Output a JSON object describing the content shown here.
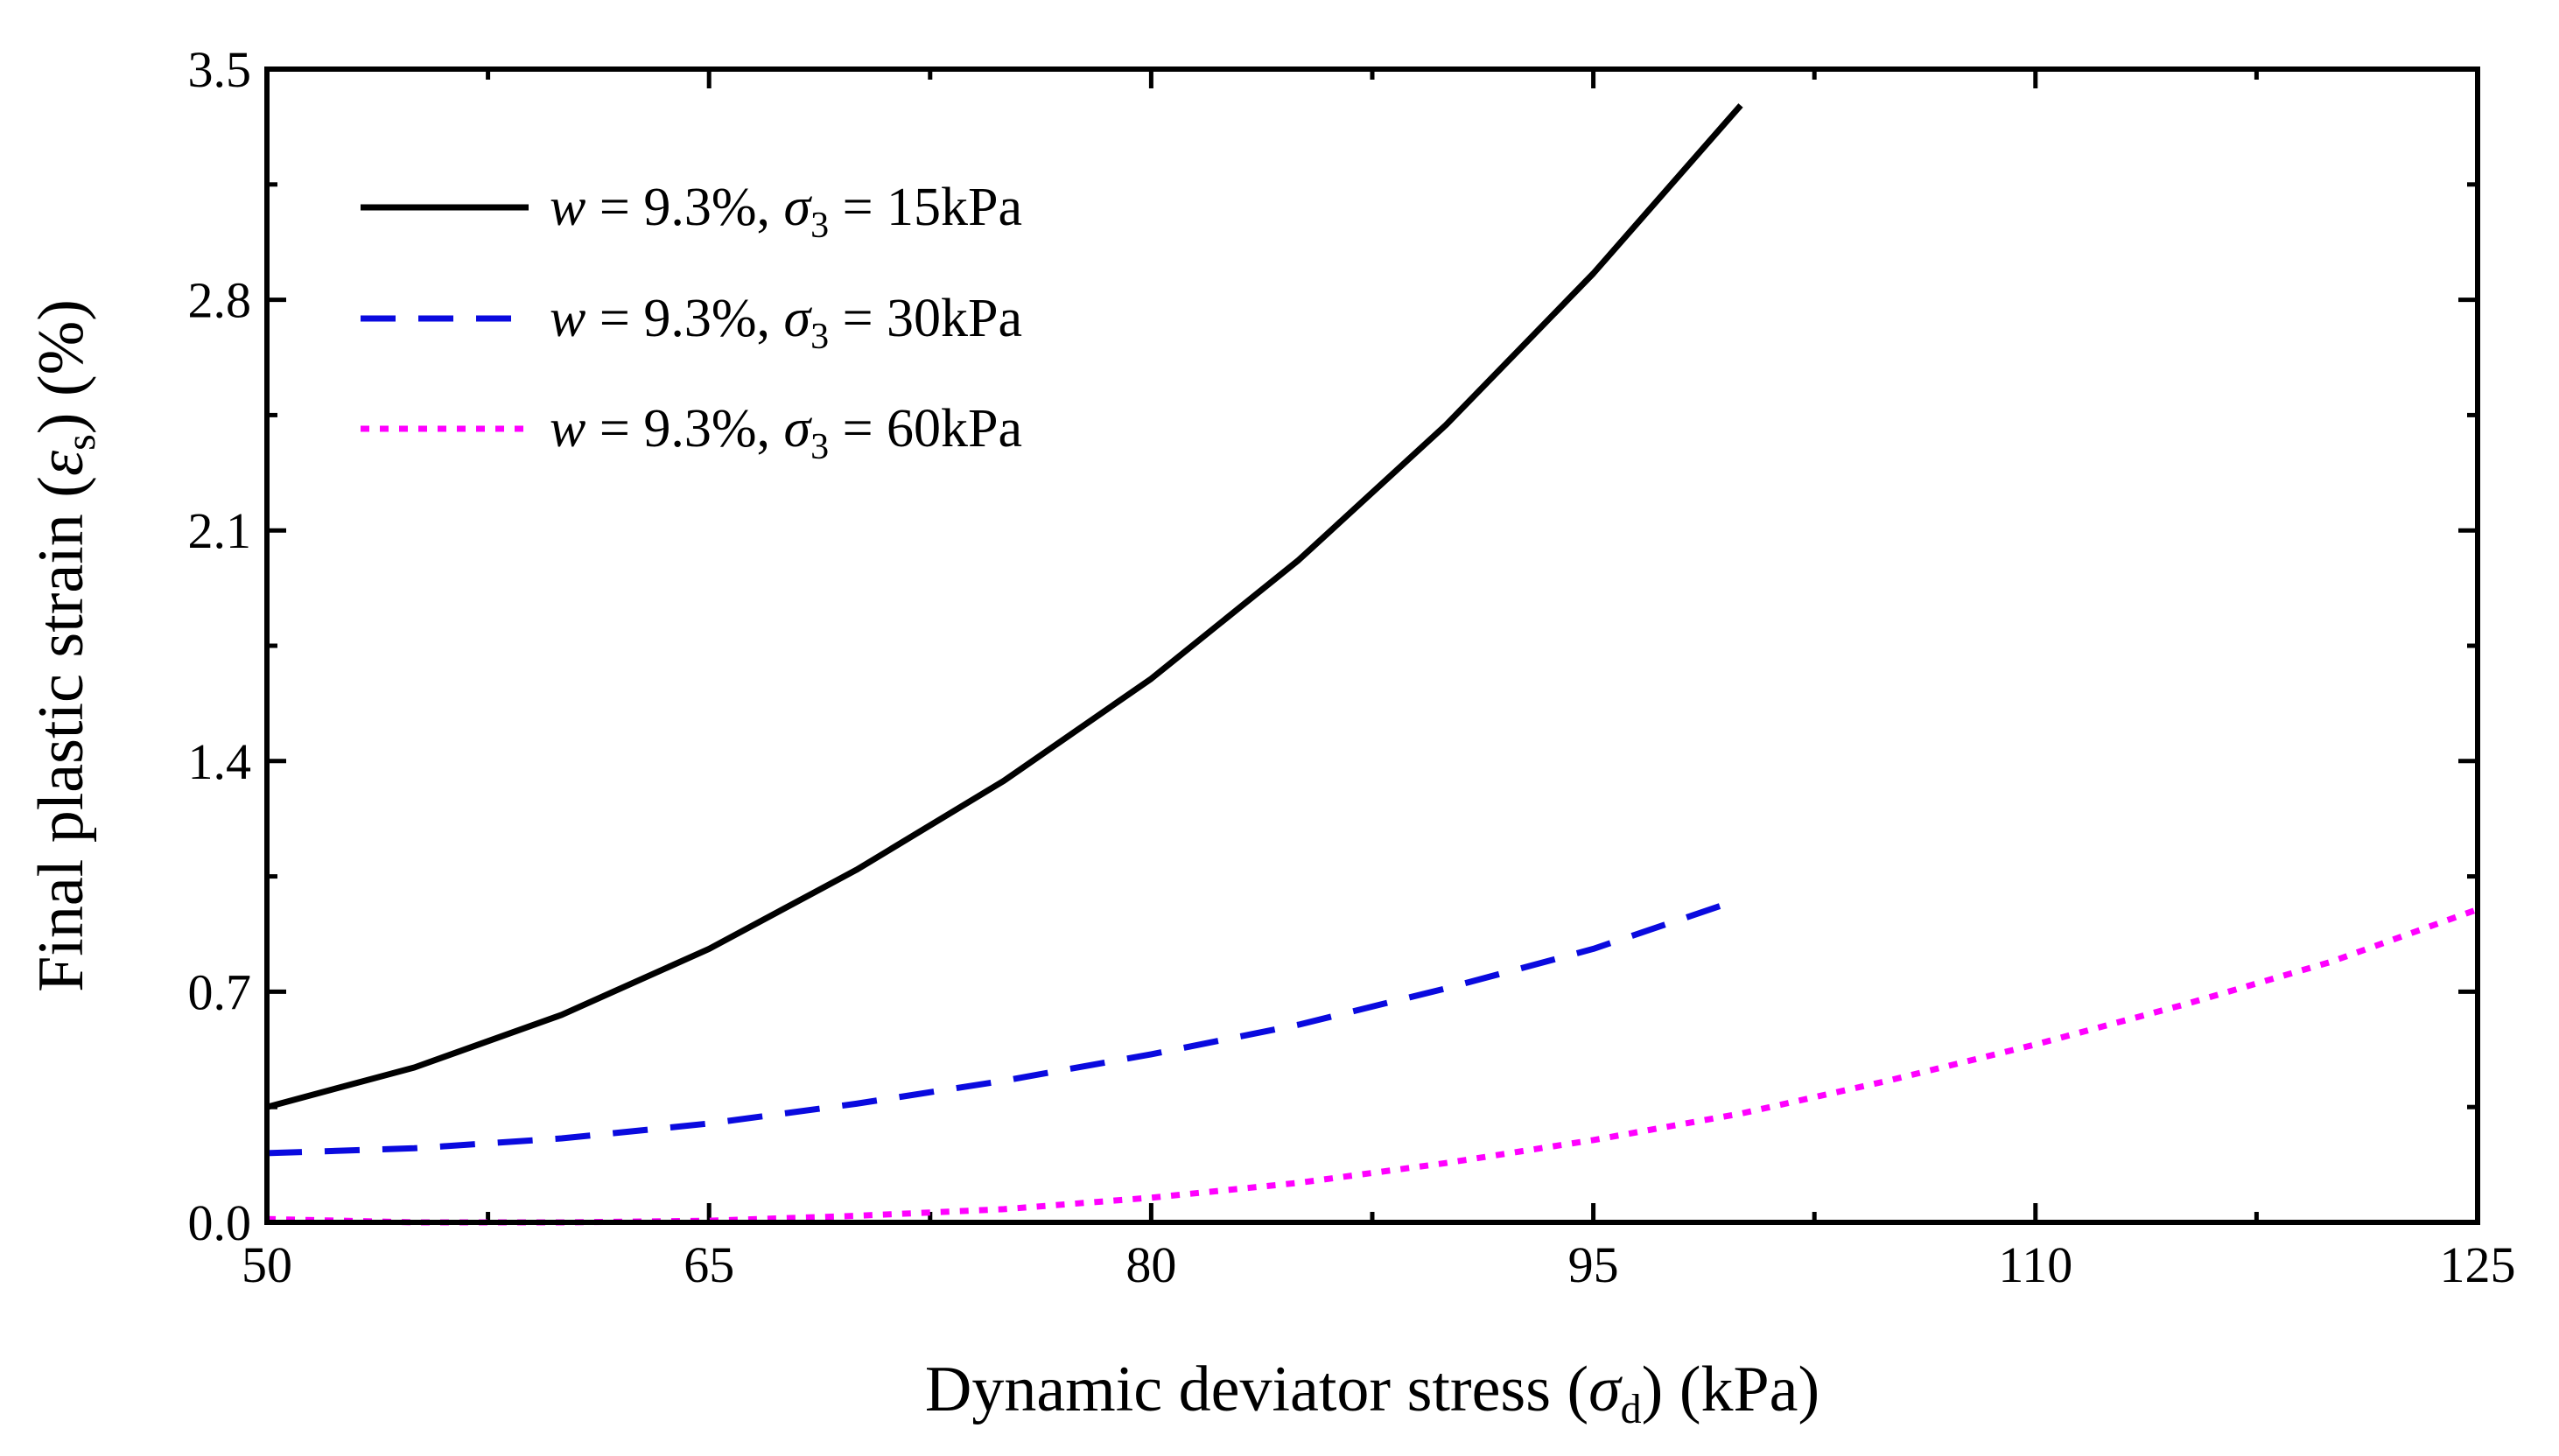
{
  "chart_data": {
    "type": "line",
    "xlabel": {
      "prefix": "Dynamic deviator stress (",
      "symbol": "σ",
      "subscript": "d",
      "suffix": ") (kPa)"
    },
    "ylabel": {
      "prefix": "Final plastic strain (",
      "symbol": "ε",
      "subscript": "s",
      "suffix": ") (%)"
    },
    "xlim": [
      50,
      125
    ],
    "ylim": [
      0,
      3.5
    ],
    "xticks": [
      50,
      65,
      80,
      95,
      110,
      125
    ],
    "xtick_labels": [
      "50",
      "65",
      "80",
      "95",
      "110",
      "125"
    ],
    "yticks": [
      0,
      0.7,
      1.4,
      2.1,
      2.8,
      3.5
    ],
    "ytick_labels": [
      "0.0",
      "0.7",
      "1.4",
      "2.1",
      "2.8",
      "3.5"
    ],
    "grid": false,
    "legend_position": "top-left",
    "series": [
      {
        "name": "w = 9.3%, σ3 = 15kPa",
        "w_label": "w",
        "mid_label": " = 9.3%, ",
        "sigma": "σ",
        "sub": "3",
        "end_label": " = 15kPa",
        "color": "#000000",
        "dash": "solid",
        "x": [
          50,
          55,
          60,
          65,
          70,
          75,
          80,
          85,
          90,
          95,
          100
        ],
        "y": [
          0.35,
          0.47,
          0.63,
          0.83,
          1.07,
          1.34,
          1.65,
          2.01,
          2.42,
          2.88,
          3.39
        ]
      },
      {
        "name": "w = 9.3%, σ3 = 30kPa",
        "w_label": "w",
        "mid_label": " = 9.3%, ",
        "sigma": "σ",
        "sub": "3",
        "end_label": " = 30kPa",
        "color": "#0a0adf",
        "dash": "dashed",
        "x": [
          50,
          55,
          60,
          65,
          70,
          75,
          80,
          85,
          90,
          95,
          99.3
        ],
        "y": [
          0.21,
          0.225,
          0.255,
          0.3,
          0.36,
          0.43,
          0.51,
          0.6,
          0.71,
          0.83,
          0.96
        ]
      },
      {
        "name": "w = 9.3%, σ3 = 60kPa",
        "w_label": "w",
        "mid_label": " = 9.3%, ",
        "sigma": "σ",
        "sub": "3",
        "end_label": " = 60kPa",
        "color": "#ff00ff",
        "dash": "dotted",
        "x": [
          50,
          55,
          60,
          65,
          70,
          75,
          80,
          85,
          90,
          95,
          100,
          105,
          110,
          115,
          120,
          125
        ],
        "y": [
          0.01,
          0.0,
          0.0,
          0.005,
          0.02,
          0.04,
          0.075,
          0.12,
          0.18,
          0.25,
          0.33,
          0.43,
          0.54,
          0.66,
          0.79,
          0.95
        ]
      }
    ]
  }
}
